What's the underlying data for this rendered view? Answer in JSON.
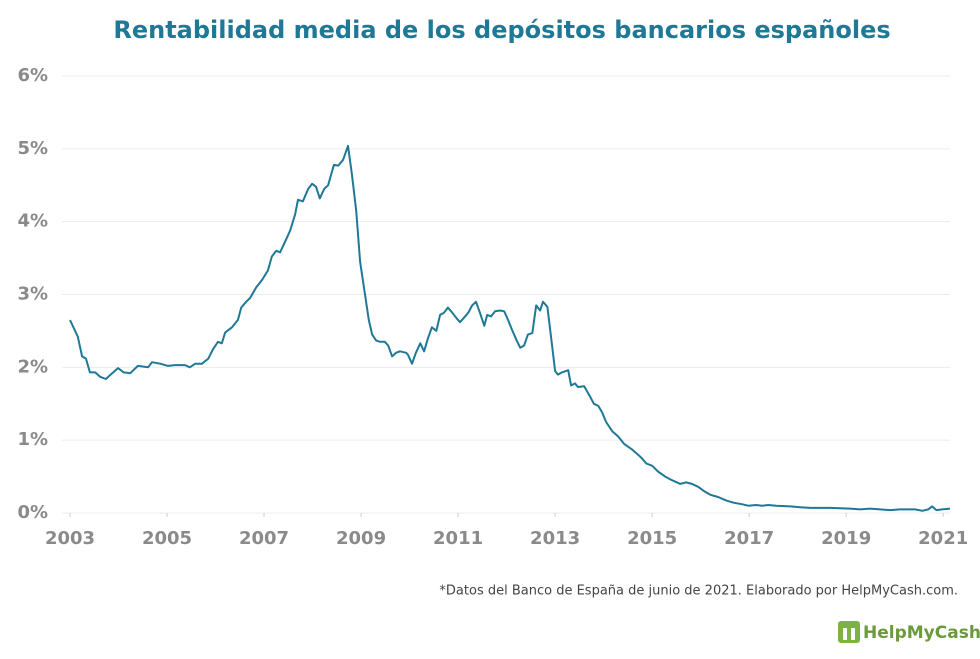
{
  "chart_data": {
    "type": "line",
    "title": "Rentabilidad media de los depósitos bancarios españoles",
    "footnote": "*Datos del Banco de España de junio de 2021. Elaborado por HelpMyCash.com.",
    "brand": "HelpMyCash",
    "color": "#1f7896",
    "grid": true,
    "xlim": [
      2003,
      2021.14
    ],
    "ylim": [
      0,
      6
    ],
    "xticks": [
      2003,
      2005,
      2007,
      2009,
      2011,
      2013,
      2015,
      2017,
      2019,
      2021
    ],
    "yticks": [
      {
        "value": 0,
        "label": "0%"
      },
      {
        "value": 1,
        "label": "1%"
      },
      {
        "value": 2,
        "label": "2%"
      },
      {
        "value": 3,
        "label": "3%"
      },
      {
        "value": 4,
        "label": "4%"
      },
      {
        "value": 5,
        "label": "5%"
      },
      {
        "value": 6,
        "label": "6%"
      }
    ],
    "x": [
      2003.0,
      2003.16,
      2003.25,
      2003.33,
      2003.41,
      2003.52,
      2003.62,
      2003.74,
      2003.87,
      2003.99,
      2004.11,
      2004.24,
      2004.4,
      2004.61,
      2004.69,
      2004.86,
      2005.02,
      2005.16,
      2005.37,
      2005.47,
      2005.58,
      2005.72,
      2005.85,
      2005.95,
      2006.05,
      2006.13,
      2006.2,
      2006.34,
      2006.46,
      2006.53,
      2006.63,
      2006.71,
      2006.84,
      2006.96,
      2007.08,
      2007.16,
      2007.25,
      2007.33,
      2007.43,
      2007.54,
      2007.64,
      2007.7,
      2007.8,
      2007.91,
      2007.99,
      2008.07,
      2008.15,
      2008.24,
      2008.32,
      2008.44,
      2008.53,
      2008.63,
      2008.73,
      2008.81,
      2008.9,
      2008.98,
      2009.08,
      2009.16,
      2009.23,
      2009.31,
      2009.39,
      2009.49,
      2009.56,
      2009.64,
      2009.72,
      2009.8,
      2009.93,
      2009.97,
      2010.05,
      2010.13,
      2010.22,
      2010.3,
      2010.38,
      2010.46,
      2010.55,
      2010.63,
      2010.71,
      2010.79,
      2010.88,
      2010.96,
      2011.04,
      2011.12,
      2011.21,
      2011.29,
      2011.37,
      2011.45,
      2011.54,
      2011.6,
      2011.68,
      2011.76,
      2011.87,
      2011.95,
      2012.03,
      2012.11,
      2012.2,
      2012.28,
      2012.36,
      2012.44,
      2012.53,
      2012.61,
      2012.69,
      2012.75,
      2012.84,
      2012.92,
      2013.0,
      2013.06,
      2013.14,
      2013.27,
      2013.33,
      2013.41,
      2013.47,
      2013.6,
      2013.72,
      2013.8,
      2013.89,
      2013.97,
      2014.05,
      2014.18,
      2014.3,
      2014.42,
      2014.59,
      2014.71,
      2014.79,
      2014.88,
      2015.0,
      2015.12,
      2015.27,
      2015.41,
      2015.58,
      2015.7,
      2015.82,
      2015.95,
      2016.07,
      2016.2,
      2016.36,
      2016.53,
      2016.69,
      2016.86,
      2016.98,
      2017.14,
      2017.27,
      2017.39,
      2017.56,
      2017.85,
      2018.05,
      2018.26,
      2018.67,
      2019.08,
      2019.29,
      2019.49,
      2019.7,
      2019.91,
      2020.11,
      2020.42,
      2020.57,
      2020.69,
      2020.77,
      2020.86,
      2020.98,
      2021.14
    ],
    "values": [
      2.65,
      2.42,
      2.15,
      2.12,
      1.93,
      1.93,
      1.87,
      1.84,
      1.92,
      1.99,
      1.93,
      1.92,
      2.02,
      2.0,
      2.07,
      2.05,
      2.02,
      2.03,
      2.03,
      2.0,
      2.05,
      2.05,
      2.12,
      2.25,
      2.35,
      2.33,
      2.48,
      2.55,
      2.65,
      2.82,
      2.9,
      2.95,
      3.1,
      3.2,
      3.33,
      3.52,
      3.6,
      3.58,
      3.72,
      3.88,
      4.1,
      4.3,
      4.28,
      4.45,
      4.52,
      4.48,
      4.32,
      4.45,
      4.5,
      4.78,
      4.77,
      4.85,
      5.04,
      4.65,
      4.15,
      3.45,
      3.0,
      2.65,
      2.45,
      2.37,
      2.35,
      2.35,
      2.3,
      2.15,
      2.2,
      2.22,
      2.2,
      2.17,
      2.05,
      2.2,
      2.33,
      2.22,
      2.4,
      2.55,
      2.5,
      2.72,
      2.75,
      2.82,
      2.75,
      2.68,
      2.62,
      2.68,
      2.75,
      2.85,
      2.9,
      2.75,
      2.57,
      2.72,
      2.7,
      2.77,
      2.78,
      2.77,
      2.65,
      2.52,
      2.38,
      2.27,
      2.3,
      2.45,
      2.47,
      2.85,
      2.78,
      2.9,
      2.83,
      2.4,
      1.95,
      1.9,
      1.93,
      1.96,
      1.75,
      1.78,
      1.73,
      1.74,
      1.6,
      1.5,
      1.47,
      1.38,
      1.25,
      1.12,
      1.05,
      0.95,
      0.87,
      0.8,
      0.75,
      0.68,
      0.65,
      0.57,
      0.5,
      0.45,
      0.4,
      0.42,
      0.4,
      0.36,
      0.3,
      0.25,
      0.22,
      0.17,
      0.14,
      0.12,
      0.1,
      0.11,
      0.1,
      0.11,
      0.1,
      0.09,
      0.08,
      0.07,
      0.07,
      0.06,
      0.05,
      0.06,
      0.05,
      0.04,
      0.05,
      0.05,
      0.03,
      0.05,
      0.09,
      0.04,
      0.05,
      0.06
    ]
  }
}
